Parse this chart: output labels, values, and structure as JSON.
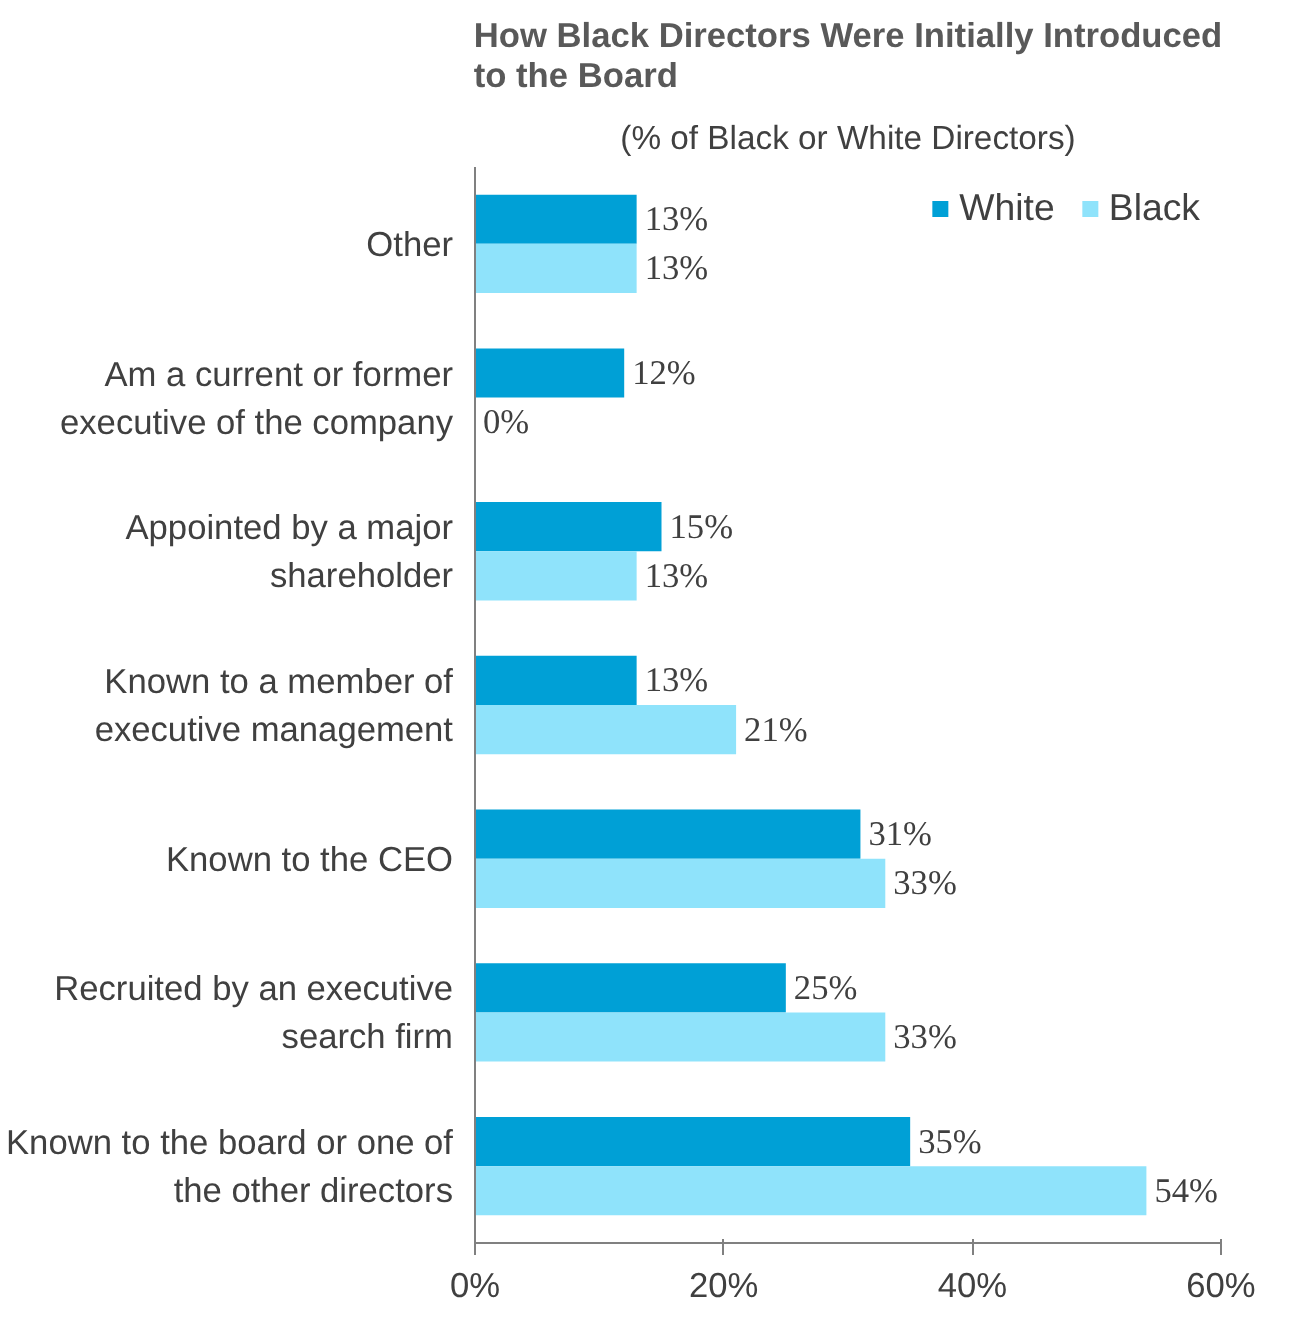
{
  "chart_data": {
    "type": "bar",
    "orientation": "horizontal",
    "title": "How Black Directors Were Initially Introduced to the Board",
    "subtitle": "(% of Black or White Directors)",
    "categories": [
      "Other",
      "Am a current or former executive of the company",
      "Appointed by a major shareholder",
      "Known to a member of executive management",
      "Known to the CEO",
      "Recruited by an executive search firm",
      "Known to the board or one of the other directors"
    ],
    "series": [
      {
        "name": "White",
        "color": "#00a0d6",
        "values": [
          13,
          12,
          15,
          13,
          31,
          25,
          35
        ],
        "value_labels": [
          "13%",
          "12%",
          "15%",
          "13%",
          "31%",
          "25%",
          "35%"
        ]
      },
      {
        "name": "Black",
        "color": "#8fe3fb",
        "values": [
          13,
          0,
          13,
          21,
          33,
          33,
          54
        ],
        "value_labels": [
          "13%",
          "0%",
          "13%",
          "21%",
          "33%",
          "33%",
          "54%"
        ]
      }
    ],
    "xlim": [
      0,
      60
    ],
    "xticks": [
      {
        "value": 0,
        "label": "0%"
      },
      {
        "value": 20,
        "label": "20%"
      },
      {
        "value": 40,
        "label": "40%"
      },
      {
        "value": 60,
        "label": "60%"
      }
    ],
    "legend": "top right",
    "grid": false
  }
}
